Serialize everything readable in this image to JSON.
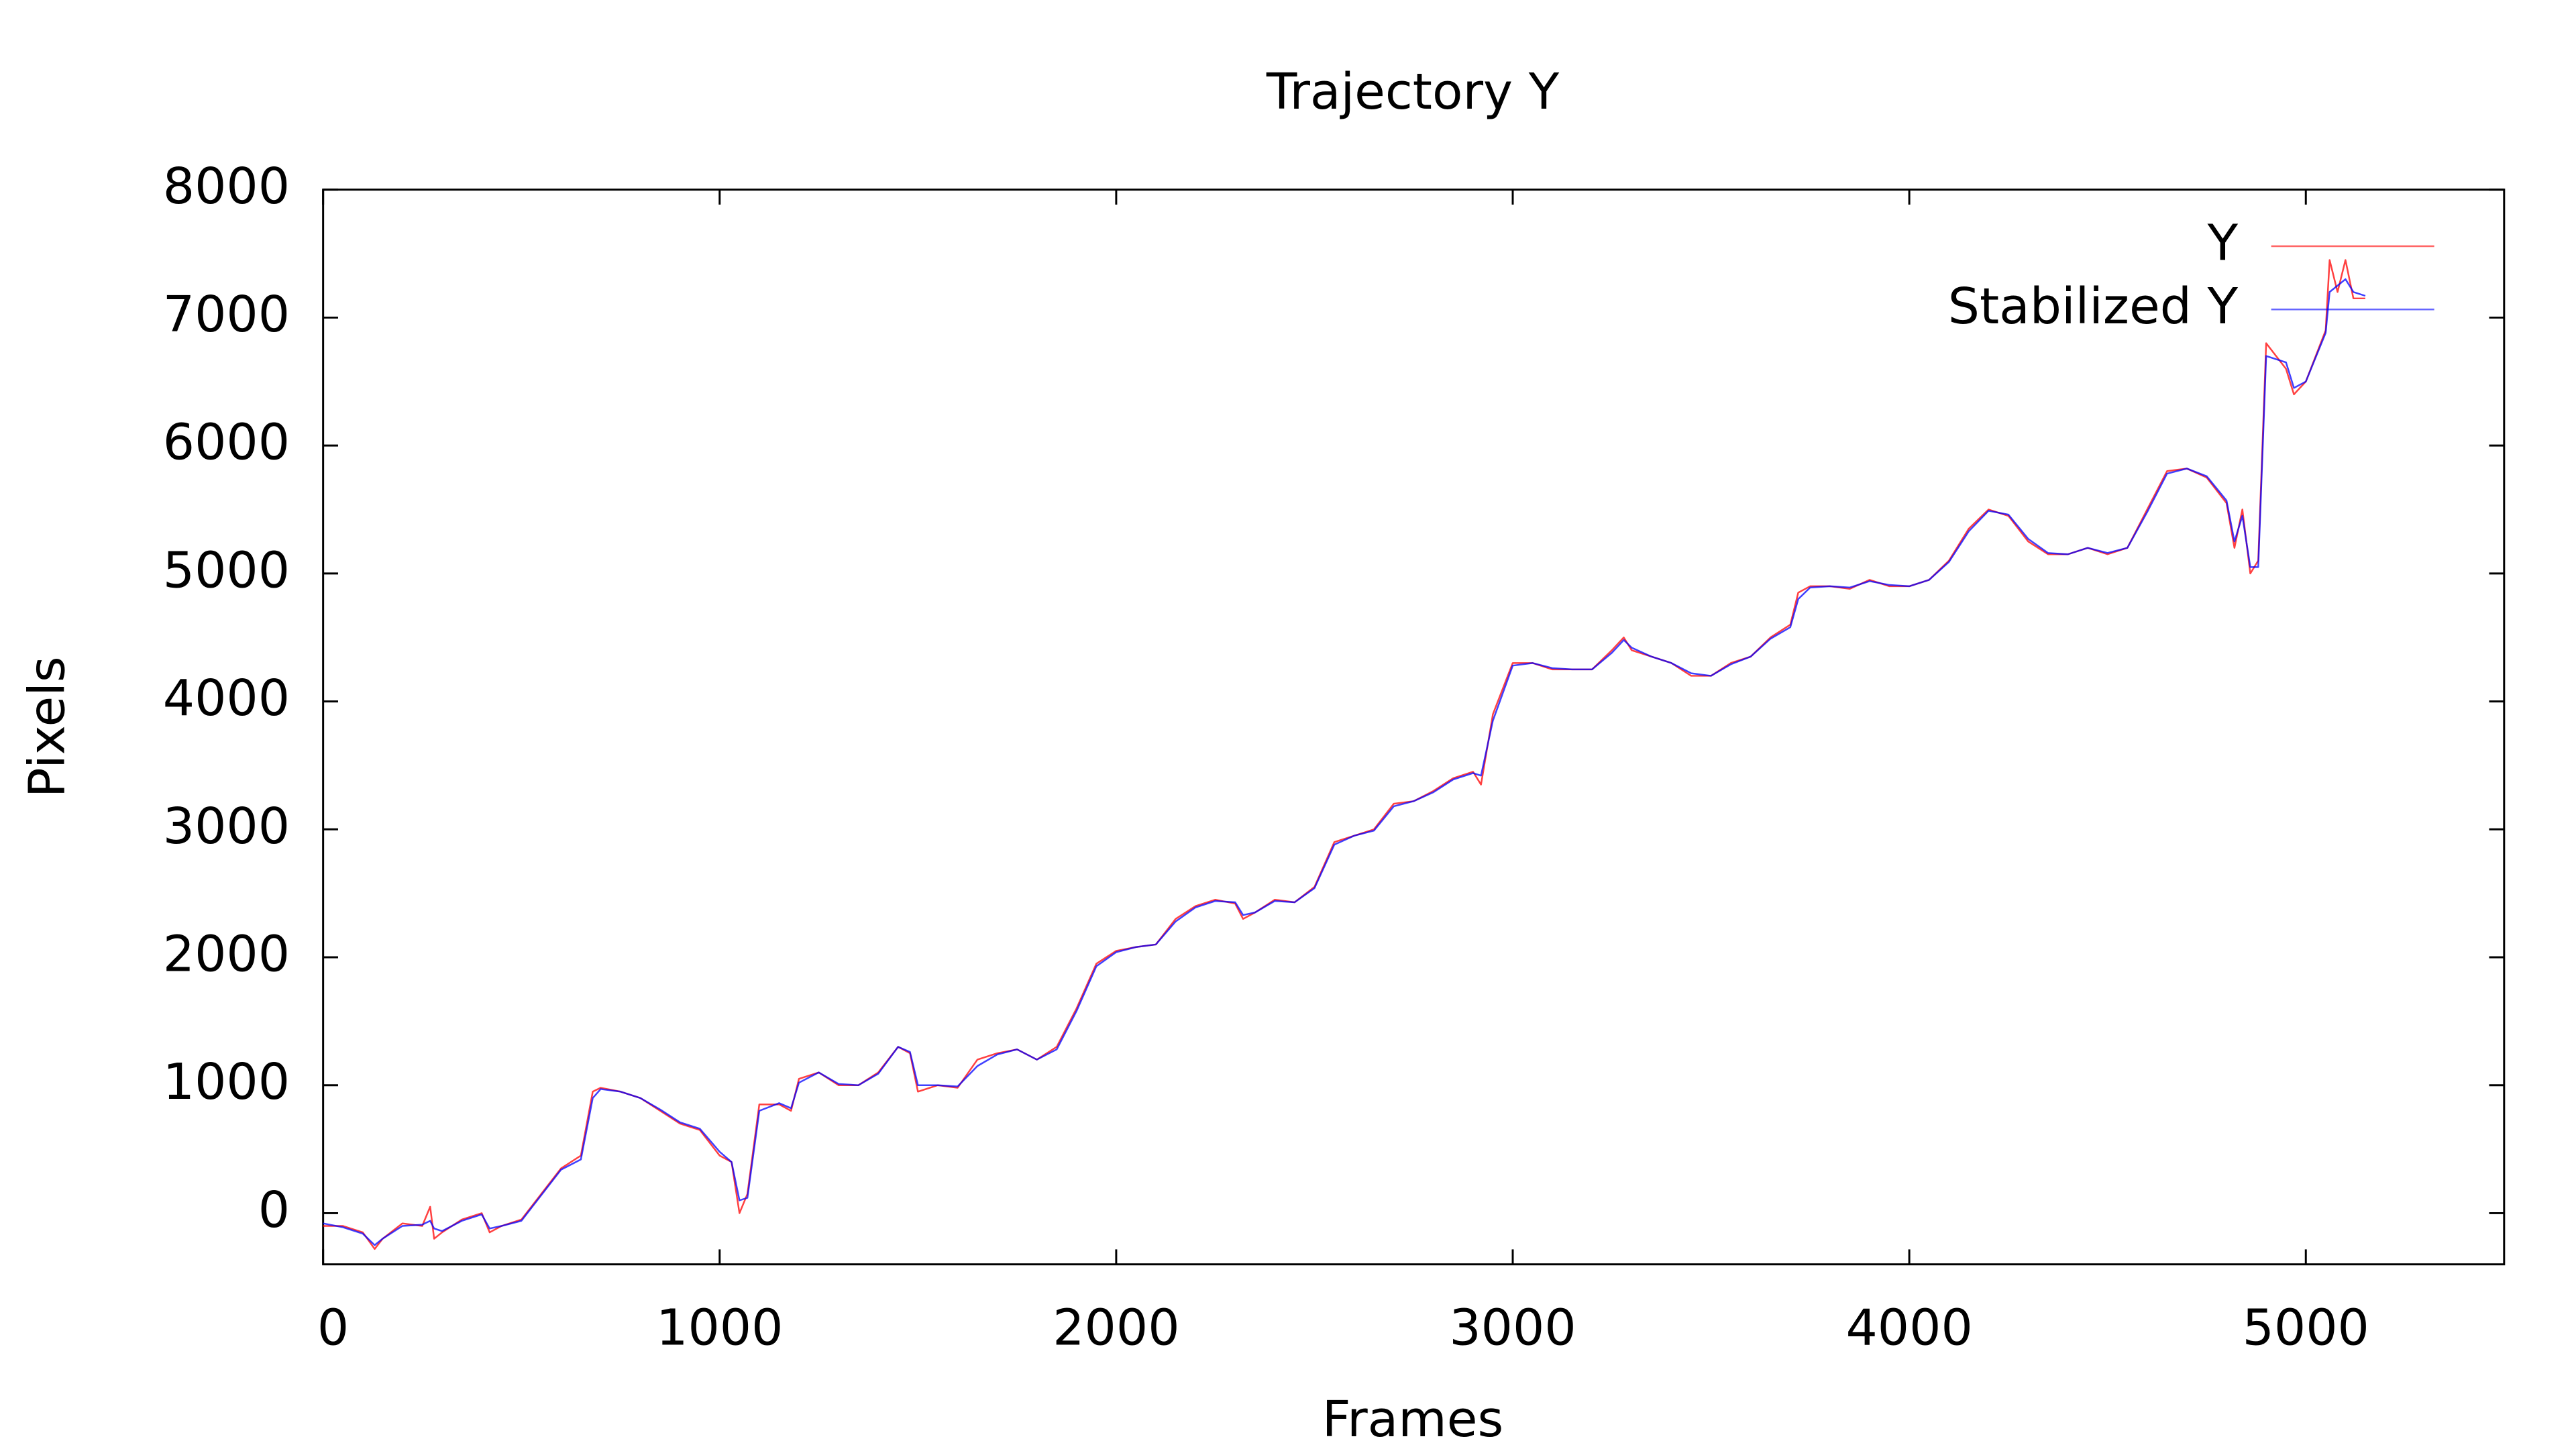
{
  "chart_data": {
    "type": "line",
    "title": "Trajectory Y",
    "x_label": "Frames",
    "y_label": "Pixels",
    "x": [
      0,
      50,
      100,
      130,
      150,
      200,
      250,
      270,
      280,
      300,
      350,
      400,
      420,
      450,
      500,
      550,
      600,
      650,
      680,
      700,
      750,
      800,
      850,
      900,
      950,
      1000,
      1030,
      1050,
      1070,
      1100,
      1150,
      1180,
      1200,
      1250,
      1300,
      1350,
      1400,
      1450,
      1480,
      1500,
      1550,
      1600,
      1650,
      1700,
      1750,
      1800,
      1850,
      1900,
      1950,
      2000,
      2050,
      2100,
      2150,
      2200,
      2250,
      2300,
      2320,
      2350,
      2400,
      2450,
      2500,
      2550,
      2600,
      2650,
      2700,
      2750,
      2800,
      2850,
      2900,
      2920,
      2950,
      3000,
      3050,
      3100,
      3150,
      3200,
      3250,
      3280,
      3300,
      3350,
      3400,
      3450,
      3500,
      3550,
      3600,
      3650,
      3700,
      3720,
      3750,
      3800,
      3850,
      3900,
      3950,
      4000,
      4050,
      4100,
      4150,
      4200,
      4250,
      4300,
      4350,
      4400,
      4450,
      4500,
      4550,
      4600,
      4650,
      4700,
      4750,
      4800,
      4820,
      4840,
      4860,
      4880,
      4900,
      4950,
      4970,
      5000,
      5050,
      5060,
      5080,
      5100,
      5120,
      5150
    ],
    "series": [
      {
        "name": "Y",
        "color": "#ff0000",
        "values": [
          -100,
          -100,
          -150,
          -280,
          -200,
          -80,
          -100,
          50,
          -200,
          -150,
          -50,
          0,
          -150,
          -100,
          -50,
          150,
          350,
          450,
          950,
          980,
          950,
          900,
          800,
          700,
          650,
          450,
          400,
          0,
          150,
          850,
          850,
          800,
          1050,
          1100,
          1000,
          1000,
          1100,
          1300,
          1250,
          950,
          1000,
          980,
          1200,
          1250,
          1280,
          1200,
          1300,
          1600,
          1950,
          2050,
          2080,
          2100,
          2300,
          2400,
          2450,
          2420,
          2300,
          2350,
          2450,
          2430,
          2550,
          2900,
          2950,
          3000,
          3200,
          3220,
          3300,
          3400,
          3450,
          3350,
          3900,
          4300,
          4300,
          4250,
          4250,
          4250,
          4400,
          4500,
          4400,
          4350,
          4300,
          4200,
          4200,
          4300,
          4350,
          4500,
          4600,
          4850,
          4900,
          4900,
          4880,
          4950,
          4900,
          4900,
          4950,
          5100,
          5350,
          5500,
          5450,
          5250,
          5150,
          5150,
          5200,
          5150,
          5200,
          5500,
          5800,
          5820,
          5750,
          5550,
          5200,
          5500,
          5000,
          5100,
          6800,
          6600,
          6400,
          6500,
          6900,
          7450,
          7200,
          7450,
          7150,
          7150
        ]
      },
      {
        "name": "Stabilized Y",
        "color": "#0000ff",
        "values": [
          -80,
          -110,
          -160,
          -250,
          -200,
          -100,
          -90,
          -60,
          -120,
          -140,
          -60,
          -10,
          -120,
          -100,
          -60,
          140,
          340,
          420,
          900,
          970,
          950,
          900,
          810,
          710,
          660,
          480,
          400,
          100,
          120,
          800,
          860,
          820,
          1020,
          1100,
          1010,
          1000,
          1090,
          1300,
          1260,
          1000,
          1000,
          990,
          1150,
          1240,
          1280,
          1200,
          1280,
          1580,
          1930,
          2040,
          2080,
          2100,
          2280,
          2390,
          2440,
          2430,
          2330,
          2350,
          2440,
          2430,
          2540,
          2880,
          2950,
          2990,
          3180,
          3220,
          3290,
          3390,
          3440,
          3420,
          3850,
          4280,
          4300,
          4260,
          4250,
          4250,
          4380,
          4480,
          4420,
          4350,
          4300,
          4220,
          4200,
          4290,
          4350,
          4490,
          4580,
          4800,
          4890,
          4900,
          4890,
          4940,
          4910,
          4900,
          4950,
          5090,
          5330,
          5490,
          5460,
          5270,
          5160,
          5150,
          5200,
          5160,
          5200,
          5480,
          5780,
          5820,
          5760,
          5570,
          5250,
          5450,
          5050,
          5050,
          6700,
          6650,
          6450,
          6500,
          6880,
          7200,
          7250,
          7300,
          7200,
          7170
        ]
      }
    ],
    "xlim": [
      0,
      5500
    ],
    "xticks": [
      0,
      1000,
      2000,
      3000,
      4000,
      5000
    ],
    "ylim": [
      -400,
      8000
    ],
    "yticks": [
      0,
      1000,
      2000,
      3000,
      4000,
      5000,
      6000,
      7000,
      8000
    ],
    "legend": "upper right"
  }
}
